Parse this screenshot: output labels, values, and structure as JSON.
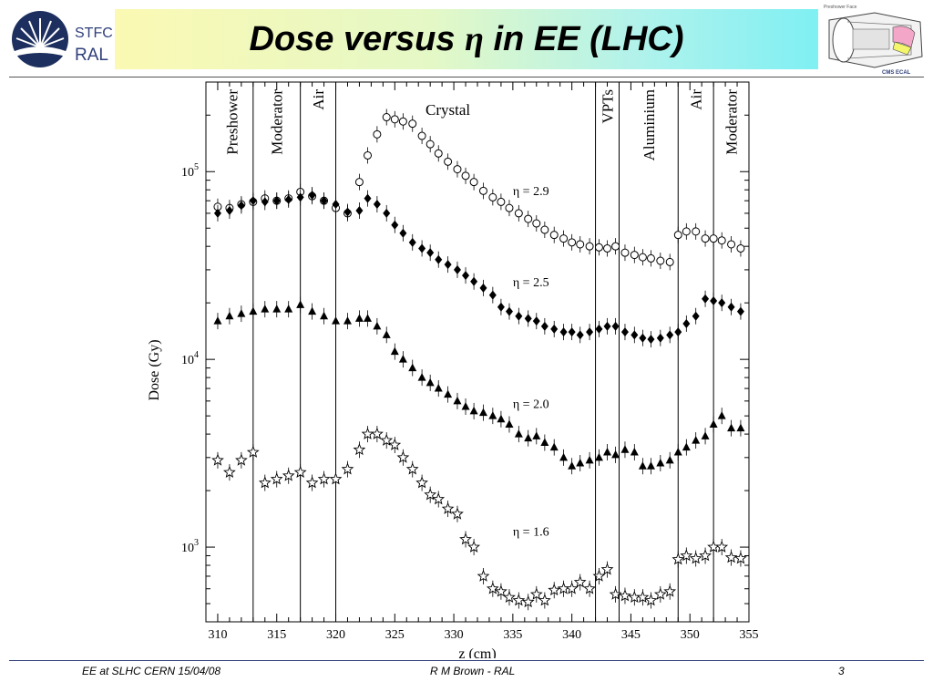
{
  "header": {
    "logo_line1": "STFC",
    "logo_line2": "RAL",
    "title_main": "Dose versus ",
    "title_symbol": "η",
    "title_rest": " in EE (LHC)",
    "detector_caption": "CMS ECAL",
    "detector_top_caption": "Preshower Face"
  },
  "footer": {
    "left": "EE at SLHC CERN 15/04/08",
    "center": "R M Brown - RAL",
    "right": "3"
  },
  "chart_data": {
    "type": "scatter",
    "xlabel": "z (cm)",
    "ylabel": "Dose (Gy)",
    "xlim": [
      309,
      355
    ],
    "ylim": [
      400,
      300000
    ],
    "yscale": "log",
    "x_ticks": [
      310,
      315,
      320,
      325,
      330,
      335,
      340,
      345,
      350,
      355
    ],
    "y_ticks": [
      {
        "value": 1000,
        "base": "10",
        "exp": "3"
      },
      {
        "value": 10000,
        "base": "10",
        "exp": "4"
      },
      {
        "value": 100000,
        "base": "10",
        "exp": "5"
      }
    ],
    "region_boundaries": [
      313,
      317,
      320,
      342,
      344,
      349,
      352
    ],
    "region_labels": [
      {
        "text": "Preshower",
        "x": 311.2,
        "orientation": "vertical"
      },
      {
        "text": "Moderator",
        "x": 315.0,
        "orientation": "vertical"
      },
      {
        "text": "Air",
        "x": 318.5,
        "orientation": "vertical"
      },
      {
        "text": "Crystal",
        "x": 329.5,
        "orientation": "horizontal"
      },
      {
        "text": "VPTs",
        "x": 343.0,
        "orientation": "vertical"
      },
      {
        "text": "Aluminium",
        "x": 346.5,
        "orientation": "vertical"
      },
      {
        "text": "Air",
        "x": 350.5,
        "orientation": "vertical"
      },
      {
        "text": "Moderator",
        "x": 353.5,
        "orientation": "vertical"
      }
    ],
    "series": [
      {
        "name": "η = 2.9",
        "label_at": {
          "x": 335,
          "y": 75000
        },
        "marker": "open-circle",
        "x": [
          310,
          311,
          312,
          313,
          314,
          315,
          316,
          317,
          318,
          319,
          320,
          321,
          322,
          322.7,
          323.5,
          324.3,
          325,
          325.7,
          326.5,
          327.3,
          328,
          328.7,
          329.5,
          330.3,
          331,
          331.7,
          332.5,
          333.3,
          334,
          334.7,
          335.5,
          336.3,
          337,
          337.7,
          338.5,
          339.3,
          340,
          340.7,
          341.5,
          342.3,
          343,
          343.7,
          344.5,
          345.3,
          346,
          346.7,
          347.5,
          348.3,
          349,
          349.7,
          350.5,
          351.3,
          352,
          352.7,
          353.5,
          354.3
        ],
        "values": [
          65000,
          64000,
          67000,
          69000,
          72000,
          70000,
          72000,
          78000,
          74000,
          70000,
          64000,
          60000,
          88000,
          122000,
          158000,
          195000,
          190000,
          185000,
          180000,
          155000,
          140000,
          125000,
          113000,
          103000,
          95000,
          88000,
          79000,
          73000,
          69000,
          64000,
          60000,
          56000,
          53000,
          49000,
          46000,
          44000,
          42000,
          41000,
          40000,
          39500,
          39000,
          40000,
          37000,
          36000,
          35000,
          34500,
          33500,
          33000,
          46000,
          48000,
          48000,
          44000,
          44000,
          43000,
          41000,
          39000
        ]
      },
      {
        "name": "η = 2.5",
        "label_at": {
          "x": 335,
          "y": 24500
        },
        "marker": "filled-diamond",
        "x": [
          310,
          311,
          312,
          313,
          314,
          315,
          316,
          317,
          318,
          319,
          320,
          321,
          322,
          322.7,
          323.5,
          324.3,
          325,
          325.7,
          326.5,
          327.3,
          328,
          328.7,
          329.5,
          330.3,
          331,
          331.7,
          332.5,
          333.3,
          334,
          334.7,
          335.5,
          336.3,
          337,
          337.7,
          338.5,
          339.3,
          340,
          340.7,
          341.5,
          342.3,
          343,
          343.7,
          344.5,
          345.3,
          346,
          346.7,
          347.5,
          348.3,
          349,
          349.7,
          350.5,
          351.3,
          352,
          352.7,
          353.5,
          354.3
        ],
        "values": [
          60000,
          62000,
          66000,
          70000,
          69000,
          70000,
          71000,
          73000,
          75000,
          70000,
          67000,
          61000,
          62000,
          72000,
          67000,
          60000,
          52000,
          47000,
          42000,
          39000,
          37000,
          34000,
          32000,
          30000,
          28000,
          26000,
          24000,
          22000,
          19000,
          18000,
          17000,
          16500,
          16000,
          15000,
          14500,
          14000,
          14000,
          13500,
          14000,
          14500,
          15000,
          15000,
          14000,
          13500,
          13000,
          12800,
          13000,
          13500,
          14000,
          15500,
          17000,
          21000,
          20500,
          20000,
          19000,
          18000
        ]
      },
      {
        "name": "η = 2.0",
        "label_at": {
          "x": 335,
          "y": 5500
        },
        "marker": "filled-triangle",
        "x": [
          310,
          311,
          312,
          313,
          314,
          315,
          316,
          317,
          318,
          319,
          320,
          321,
          322,
          322.7,
          323.5,
          324.3,
          325,
          325.7,
          326.5,
          327.3,
          328,
          328.7,
          329.5,
          330.3,
          331,
          331.7,
          332.5,
          333.3,
          334,
          334.7,
          335.5,
          336.3,
          337,
          337.7,
          338.5,
          339.3,
          340,
          340.7,
          341.5,
          342.3,
          343,
          343.7,
          344.5,
          345.3,
          346,
          346.7,
          347.5,
          348.3,
          349,
          349.7,
          350.5,
          351.3,
          352,
          352.7,
          353.5,
          354.3
        ],
        "values": [
          16000,
          17000,
          17500,
          18000,
          18500,
          18500,
          18500,
          19500,
          18000,
          17000,
          16000,
          16000,
          16500,
          16500,
          15000,
          13500,
          11000,
          10000,
          9000,
          8000,
          7500,
          7000,
          6500,
          6000,
          5600,
          5300,
          5200,
          5000,
          4800,
          4500,
          4000,
          3800,
          3900,
          3600,
          3400,
          3000,
          2700,
          2800,
          2900,
          3000,
          3200,
          3100,
          3300,
          3200,
          2700,
          2700,
          2800,
          2900,
          3200,
          3400,
          3700,
          3900,
          4500,
          5000,
          4300,
          4300
        ]
      },
      {
        "name": "η = 1.6",
        "label_at": {
          "x": 335,
          "y": 1150
        },
        "marker": "open-star",
        "x": [
          310,
          311,
          312,
          313,
          314,
          315,
          316,
          317,
          318,
          319,
          320,
          321,
          322,
          322.7,
          323.5,
          324.3,
          325,
          325.7,
          326.5,
          327.3,
          328,
          328.7,
          329.5,
          330.3,
          331,
          331.7,
          332.5,
          333.3,
          334,
          334.7,
          335.5,
          336.3,
          337,
          337.7,
          338.5,
          339.3,
          340,
          340.7,
          341.5,
          342.3,
          343,
          343.7,
          344.5,
          345.3,
          346,
          346.7,
          347.5,
          348.3,
          349,
          349.7,
          350.5,
          351.3,
          352,
          352.7,
          353.5,
          354.3
        ],
        "values": [
          2900,
          2500,
          2900,
          3200,
          2200,
          2300,
          2400,
          2500,
          2200,
          2300,
          2300,
          2600,
          3300,
          4000,
          4000,
          3700,
          3500,
          3000,
          2600,
          2200,
          1900,
          1800,
          1600,
          1500,
          1100,
          1000,
          700,
          600,
          580,
          540,
          520,
          510,
          560,
          520,
          590,
          600,
          600,
          650,
          600,
          700,
          760,
          560,
          550,
          540,
          540,
          520,
          560,
          580,
          860,
          900,
          870,
          900,
          1000,
          1000,
          880,
          870
        ]
      }
    ]
  }
}
